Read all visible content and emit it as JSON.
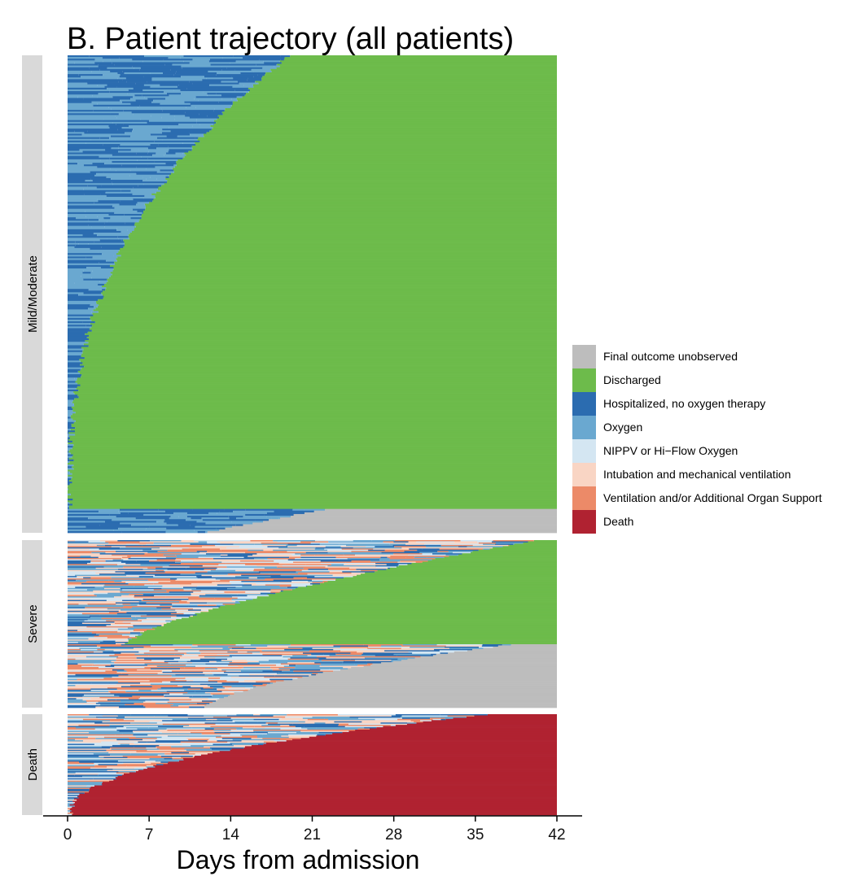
{
  "chart_data": {
    "type": "stacked_state_trajectory",
    "title": "B. Patient trajectory (all patients)",
    "xlabel": "Days from admission",
    "ylabel": "",
    "xlim": [
      0,
      42
    ],
    "xticks": [
      0,
      7,
      14,
      21,
      28,
      35,
      42
    ],
    "xtick_labels": [
      "0",
      "7",
      "14",
      "21",
      "28",
      "35",
      "42"
    ],
    "legend": {
      "position": "right",
      "entries": [
        {
          "state": "Final outcome unobserved",
          "color": "#bdbdbd"
        },
        {
          "state": "Discharged",
          "color": "#6dbb4b"
        },
        {
          "state": "Hospitalized, no oxygen therapy",
          "color": "#2b6cb0"
        },
        {
          "state": "Oxygen",
          "color": "#6aa8d0"
        },
        {
          "state": "NIPPV or Hi−Flow Oxygen",
          "color": "#d4e6f2"
        },
        {
          "state": "Intubation and mechanical ventilation",
          "color": "#f9d5c4"
        },
        {
          "state": "Ventilation and/or Additional Organ Support",
          "color": "#ec8a68"
        },
        {
          "state": "Death",
          "color": "#b02231"
        }
      ]
    },
    "panels": [
      {
        "name": "Mild/Moderate",
        "rows": 280,
        "groups": [
          {
            "final_state": "Discharged",
            "share": 0.95,
            "event_day_range": [
              0.2,
              19
            ],
            "curve_power": 2.6,
            "early_state": "Hospitalized, no oxygen therapy",
            "mix": [
              "Oxygen",
              "Hospitalized, no oxygen therapy"
            ]
          },
          {
            "final_state": "Final outcome unobserved",
            "share": 0.05,
            "event_day_range": [
              12,
              22
            ],
            "curve_power": 1.0,
            "early_state": "Oxygen",
            "mix": [
              "Oxygen",
              "Hospitalized, no oxygen therapy"
            ]
          }
        ]
      },
      {
        "name": "Severe",
        "rows": 140,
        "groups": [
          {
            "final_state": "Discharged",
            "share": 0.62,
            "event_day_range": [
              5,
              40
            ],
            "curve_power": 1.4,
            "early_state": "Ventilation and/or Additional Organ Support",
            "mix": [
              "Oxygen",
              "Hospitalized, no oxygen therapy",
              "NIPPV or Hi−Flow Oxygen",
              "Intubation and mechanical ventilation",
              "Ventilation and/or Additional Organ Support"
            ]
          },
          {
            "final_state": "Final outcome unobserved",
            "share": 0.38,
            "event_day_range": [
              12,
              38
            ],
            "curve_power": 1.6,
            "early_state": "Ventilation and/or Additional Organ Support",
            "mix": [
              "Oxygen",
              "Ventilation and/or Additional Organ Support",
              "Intubation and mechanical ventilation",
              "NIPPV or Hi−Flow Oxygen",
              "Hospitalized, no oxygen therapy"
            ]
          }
        ]
      },
      {
        "name": "Death",
        "rows": 85,
        "groups": [
          {
            "final_state": "Death",
            "share": 1.0,
            "event_day_range": [
              0.2,
              36
            ],
            "curve_power": 2.2,
            "early_state": "Ventilation and/or Additional Organ Support",
            "mix": [
              "Oxygen",
              "Ventilation and/or Additional Organ Support",
              "Intubation and mechanical ventilation",
              "Hospitalized, no oxygen therapy",
              "NIPPV or Hi−Flow Oxygen"
            ]
          }
        ]
      }
    ]
  }
}
